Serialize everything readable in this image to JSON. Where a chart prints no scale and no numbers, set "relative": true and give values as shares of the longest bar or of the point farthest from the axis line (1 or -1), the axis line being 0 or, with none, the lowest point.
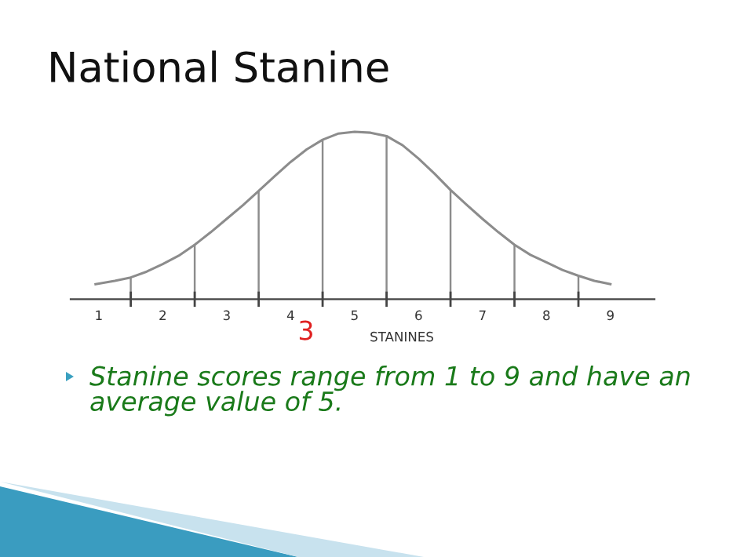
{
  "chart_data": {
    "type": "line",
    "title": "National Stanine",
    "xlabel": "STANINES",
    "relative": true,
    "annotations": [
      "3",
      "Stanine scores range from 1 to 9 and have an average value of 5."
    ],
    "xlim": [
      0.56,
      9.69
    ],
    "xticks": [
      {
        "value": 1,
        "label": "1"
      },
      {
        "value": 1.5,
        "label": null
      },
      {
        "value": 2,
        "label": "2"
      },
      {
        "value": 2.5,
        "label": null
      },
      {
        "value": 3,
        "label": "3"
      },
      {
        "value": 3.5,
        "label": null
      },
      {
        "value": 4,
        "label": "4"
      },
      {
        "value": 4.5,
        "label": null
      },
      {
        "value": 5,
        "label": "5"
      },
      {
        "value": 5.5,
        "label": null
      },
      {
        "value": 6,
        "label": "6"
      },
      {
        "value": 6.5,
        "label": null
      },
      {
        "value": 7,
        "label": "7"
      },
      {
        "value": 7.5,
        "label": null
      },
      {
        "value": 8,
        "label": "8"
      },
      {
        "value": 8.5,
        "label": null
      },
      {
        "value": 9,
        "label": "9"
      }
    ],
    "series": [
      {
        "color": "#8c8c8c",
        "x": [
          0.95,
          1.25,
          1.5,
          1.75,
          2.0,
          2.25,
          2.5,
          2.75,
          3.0,
          3.25,
          3.5,
          3.75,
          4.0,
          4.25,
          4.5,
          4.75,
          5.0,
          5.25,
          5.5,
          5.75,
          6.0,
          6.25,
          6.5,
          6.75,
          7.0,
          7.25,
          7.5,
          7.75,
          8.0,
          8.25,
          8.5,
          8.75,
          9.0
        ],
        "values": [
          0.09,
          0.11,
          0.13,
          0.165,
          0.21,
          0.26,
          0.325,
          0.4,
          0.48,
          0.56,
          0.647,
          0.735,
          0.82,
          0.895,
          0.953,
          0.99,
          1.0,
          0.995,
          0.975,
          0.92,
          0.84,
          0.75,
          0.653,
          0.565,
          0.48,
          0.4,
          0.325,
          0.265,
          0.22,
          0.175,
          0.14,
          0.11,
          0.09
        ]
      },
      {
        "type": "bar",
        "color": "#8c8c8c",
        "x": [
          1.5,
          2.5,
          3.5,
          4.5,
          5.5,
          6.5,
          7.5,
          8.5
        ],
        "values": [
          0.13,
          0.325,
          0.647,
          0.953,
          0.975,
          0.653,
          0.325,
          0.14
        ]
      }
    ]
  }
}
